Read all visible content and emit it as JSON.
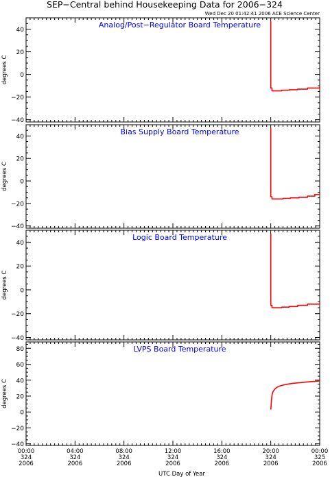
{
  "header": {
    "title": "SEP−Central behind Housekeeping Data for 2006−324",
    "timestamp": "Wed Dec 20 01:42:41 2006 ACE Science Center"
  },
  "colors": {
    "data": "#ff0000",
    "panel_title": "#0000ff",
    "axes": "#000000"
  },
  "x_axis": {
    "label": "UTC Day of Year",
    "ticks": [
      {
        "t": 0,
        "lines": [
          "00:00",
          "324",
          "2006"
        ]
      },
      {
        "t": 4,
        "lines": [
          "04:00",
          "324",
          "2006"
        ]
      },
      {
        "t": 8,
        "lines": [
          "08:00",
          "324",
          "2006"
        ]
      },
      {
        "t": 12,
        "lines": [
          "12:00",
          "324",
          "2006"
        ]
      },
      {
        "t": 16,
        "lines": [
          "16:00",
          "324",
          "2006"
        ]
      },
      {
        "t": 20,
        "lines": [
          "20:00",
          "324",
          "2006"
        ]
      },
      {
        "t": 24,
        "lines": [
          "00:00",
          "325",
          "2006"
        ]
      }
    ]
  },
  "chart_data": [
    {
      "type": "line",
      "title": "Analog/Post−Regulator Board Temperature",
      "ylabel": "degrees C",
      "ylim": [
        -42,
        50
      ],
      "yticks": [
        -40,
        -20,
        0,
        20,
        40
      ],
      "xlim": [
        0,
        24
      ],
      "series": [
        {
          "x": [
            20.0,
            20.0,
            20.1,
            20.4,
            20.9,
            21.5,
            22.2,
            23.0,
            24.0
          ],
          "y": [
            47,
            -12,
            -14.5,
            -14.5,
            -14,
            -13.5,
            -13,
            -12,
            -11
          ],
          "step": true
        }
      ]
    },
    {
      "type": "line",
      "title": "Bias Supply Board Temperature",
      "ylabel": "degrees C",
      "ylim": [
        -42,
        50
      ],
      "yticks": [
        -40,
        -20,
        0,
        20,
        40
      ],
      "xlim": [
        0,
        24
      ],
      "series": [
        {
          "x": [
            20.0,
            20.0,
            20.1,
            20.5,
            21.0,
            21.6,
            22.3,
            23.0,
            23.6,
            24.0
          ],
          "y": [
            47,
            -14,
            -16,
            -16,
            -15.5,
            -15,
            -14.5,
            -13.5,
            -12,
            -11
          ],
          "step": true
        }
      ]
    },
    {
      "type": "line",
      "title": "Logic Board Temperature",
      "ylabel": "degrees C",
      "ylim": [
        -42,
        50
      ],
      "yticks": [
        -40,
        -20,
        0,
        20,
        40
      ],
      "xlim": [
        0,
        24
      ],
      "series": [
        {
          "x": [
            20.0,
            20.0,
            20.1,
            20.4,
            20.9,
            21.5,
            22.2,
            23.0,
            24.0
          ],
          "y": [
            47,
            -13,
            -15,
            -15,
            -14.5,
            -14,
            -13,
            -12,
            -11
          ],
          "step": true
        }
      ]
    },
    {
      "type": "line",
      "title": "LVPS Board Temperature",
      "ylabel": "degrees C",
      "ylim": [
        -42,
        88
      ],
      "yticks": [
        -40,
        -20,
        0,
        20,
        40,
        60,
        80
      ],
      "xlim": [
        0,
        24
      ],
      "series": [
        {
          "x": [
            20.0,
            20.05,
            20.1,
            20.2,
            20.35,
            20.5,
            20.8,
            21.2,
            21.8,
            22.5,
            23.2,
            24.0
          ],
          "y": [
            3,
            14,
            21,
            26,
            29,
            31,
            33,
            34.5,
            36,
            37,
            38,
            39
          ],
          "step": false
        }
      ]
    }
  ]
}
